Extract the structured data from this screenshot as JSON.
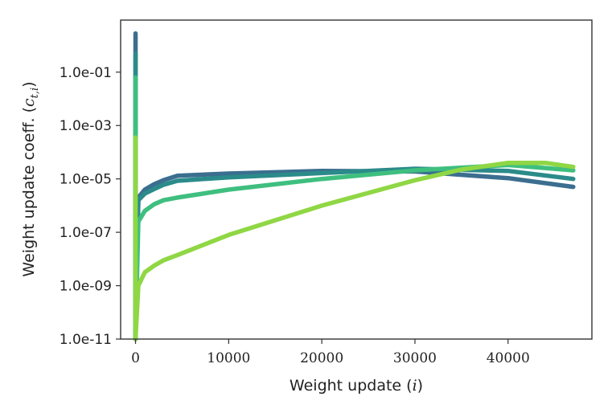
{
  "chart_data": {
    "type": "line",
    "xlabel": {
      "text": "Weight update (",
      "var": "i",
      "close": ")"
    },
    "ylabel": {
      "text": "Weight update coeff. (",
      "var": "c",
      "sub": "t,i",
      "close": ")"
    },
    "x_scale": "linear",
    "y_scale": "log",
    "xlim": [
      -1600,
      49000
    ],
    "ylim_log10": [
      -11,
      0.95
    ],
    "x_ticks": [
      0,
      10000,
      20000,
      30000,
      40000
    ],
    "x_tick_labels": [
      "0",
      "10000",
      "20000",
      "30000",
      "40000"
    ],
    "y_ticks_log10": [
      -1,
      -3,
      -5,
      -7,
      -9,
      -11
    ],
    "y_tick_labels": [
      "1.0e-01",
      "1.0e-03",
      "1.0e-05",
      "1.0e-07",
      "1.0e-09",
      "1.0e-11"
    ],
    "grid": false,
    "legend": "none",
    "series": [
      {
        "color": "#3b6e8f",
        "spike_top_log10": 0.45,
        "x": [
          0,
          300,
          1000,
          2000,
          3000,
          4500,
          10000,
          20000,
          30000,
          40000,
          47000
        ],
        "log10_y": [
          -11,
          -5.7,
          -5.4,
          -5.2,
          -5.05,
          -4.88,
          -4.8,
          -4.7,
          -4.72,
          -4.97,
          -5.3
        ]
      },
      {
        "color": "#2b8b8a",
        "spike_top_log10": -0.3,
        "x": [
          0,
          300,
          1000,
          2000,
          3000,
          4500,
          10000,
          20000,
          30000,
          40000,
          47000
        ],
        "log10_y": [
          -11,
          -5.8,
          -5.55,
          -5.38,
          -5.22,
          -5.07,
          -4.94,
          -4.78,
          -4.62,
          -4.7,
          -5.0
        ]
      },
      {
        "color": "#3fbf7f",
        "spike_top_log10": -1.2,
        "x": [
          0,
          300,
          1000,
          2000,
          3000,
          4500,
          10000,
          20000,
          30000,
          40000,
          47000
        ],
        "log10_y": [
          -11,
          -6.6,
          -6.2,
          -5.95,
          -5.8,
          -5.7,
          -5.4,
          -5.0,
          -4.68,
          -4.48,
          -4.68
        ]
      },
      {
        "color": "#8fd744",
        "spike_top_log10": -3.45,
        "x": [
          0,
          300,
          1000,
          2000,
          3000,
          4500,
          10000,
          20000,
          30000,
          35000,
          40000,
          44000,
          47000
        ],
        "log10_y": [
          -11,
          -9.0,
          -8.5,
          -8.25,
          -8.05,
          -7.85,
          -7.1,
          -6.0,
          -5.05,
          -4.65,
          -4.4,
          -4.4,
          -4.55
        ]
      }
    ]
  }
}
